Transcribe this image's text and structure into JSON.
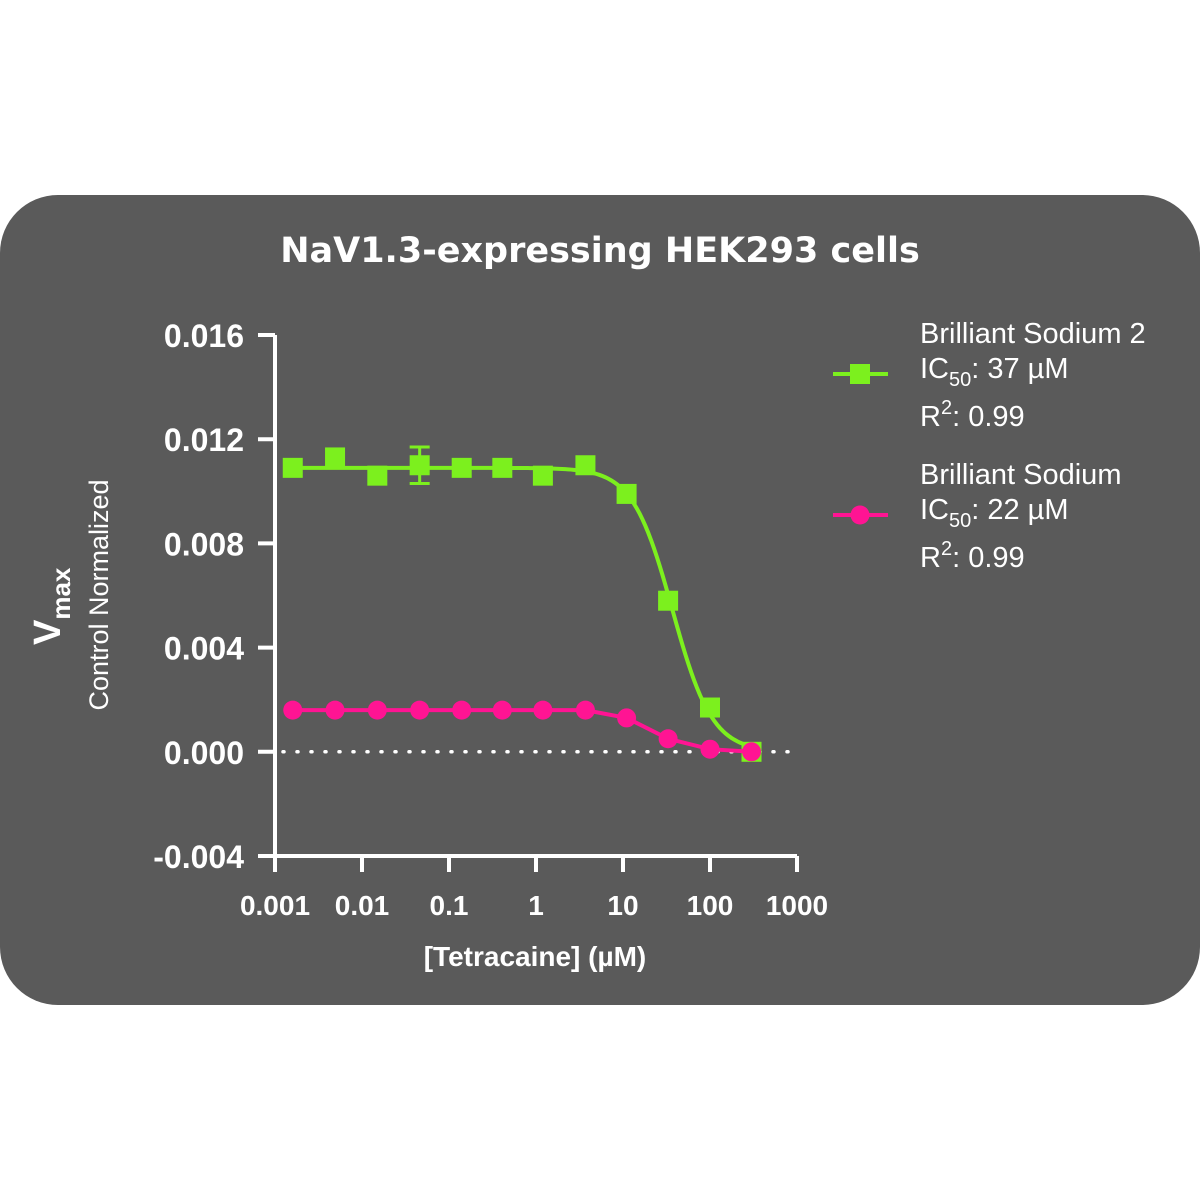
{
  "chart_data": {
    "type": "scatter",
    "title": "NaV1.3-expressing HEK293 cells",
    "xlabel": "[Tetracaine] (µM)",
    "ylabel": {
      "main": "V",
      "sub": "max",
      "secondary": "Control Normalized"
    },
    "x_scale": "log",
    "xlim": [
      0.001,
      1000
    ],
    "ylim": [
      -0.004,
      0.016
    ],
    "x_ticks": [
      "0.001",
      "0.01",
      "0.1",
      "1",
      "10",
      "100",
      "1000"
    ],
    "y_ticks": [
      "-0.004",
      "0.000",
      "0.004",
      "0.008",
      "0.012",
      "0.016"
    ],
    "baseline": {
      "y": 0,
      "style": "dotted"
    },
    "series": [
      {
        "name": "Brilliant Sodium 2",
        "ic50_label": "IC",
        "ic50_sub": "50",
        "ic50_value": ": 37 µM",
        "r2_label": "R",
        "r2_sup": "2",
        "r2_value": ": 0.99",
        "color": "#7cf01e",
        "marker": "square",
        "x": [
          0.0016,
          0.0049,
          0.015,
          0.046,
          0.14,
          0.41,
          1.2,
          3.7,
          11,
          33,
          100,
          300
        ],
        "y": [
          0.0109,
          0.0113,
          0.0106,
          0.011,
          0.0109,
          0.0109,
          0.0106,
          0.011,
          0.0099,
          0.0058,
          0.0017,
          0.0
        ],
        "error": [
          0.0002,
          0.0003,
          0.0002,
          0.0007,
          0.0002,
          0.0002,
          0.0002,
          0.0002,
          0.0003,
          0.0003,
          0.0002,
          0.0001
        ],
        "fit": {
          "top": 0.0109,
          "bottom": 0.0,
          "ic50": 37,
          "hill": 1.9
        }
      },
      {
        "name": "Brilliant Sodium",
        "ic50_label": "IC",
        "ic50_sub": "50",
        "ic50_value": ": 22 µM",
        "r2_label": "R",
        "r2_sup": "2",
        "r2_value": ": 0.99",
        "color": "#ff1493",
        "marker": "circle",
        "x": [
          0.0016,
          0.0049,
          0.015,
          0.046,
          0.14,
          0.41,
          1.2,
          3.7,
          11,
          33,
          100,
          300
        ],
        "y": [
          0.0016,
          0.0016,
          0.0016,
          0.0016,
          0.0016,
          0.0016,
          0.0016,
          0.0016,
          0.0013,
          0.0005,
          0.0001,
          0.0
        ],
        "error": [
          0,
          0,
          0,
          0,
          0,
          0,
          0,
          0,
          0,
          0,
          0,
          0
        ],
        "fit": null
      }
    ],
    "legend_position": "top-right"
  }
}
